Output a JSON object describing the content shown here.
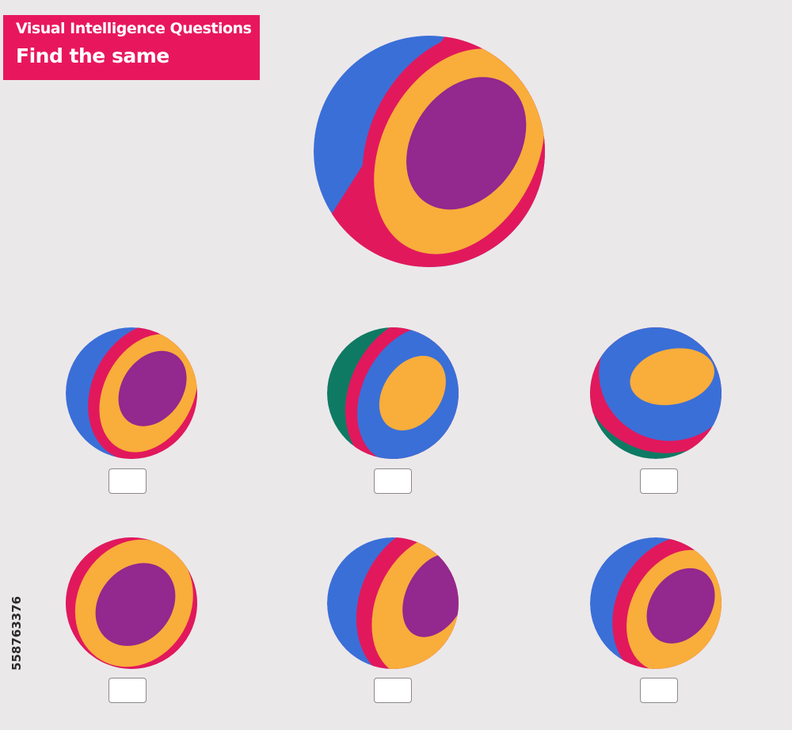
{
  "header": {
    "line1": "Visual Intelligence Questions",
    "line2": "Find the same"
  },
  "colors": {
    "background": "#ebe8ea",
    "banner": "#e8175d",
    "blue": "#3a6fd8",
    "crimson": "#e2185c",
    "orange": "#f9ad3b",
    "purple": "#93288e",
    "teal": "#0f7a63",
    "answer_box_border": "#8c8a8c"
  },
  "puzzle": {
    "target": "ball-purple-core-orange-ring",
    "options": [
      {
        "id": 1,
        "variant": "purple-core-orange-ring",
        "answer": ""
      },
      {
        "id": 2,
        "variant": "orange-core-blue-ring-teal-stripe",
        "answer": ""
      },
      {
        "id": 3,
        "variant": "orange-core-blue-ring-teal-stripe-bottom",
        "answer": ""
      },
      {
        "id": 4,
        "variant": "purple-core-orange-ring-centered",
        "answer": ""
      },
      {
        "id": 5,
        "variant": "purple-core-orange-ring-shifted-right",
        "answer": ""
      },
      {
        "id": 6,
        "variant": "purple-core-orange-ring-lower",
        "answer": ""
      }
    ]
  },
  "stock_id": "558763376"
}
